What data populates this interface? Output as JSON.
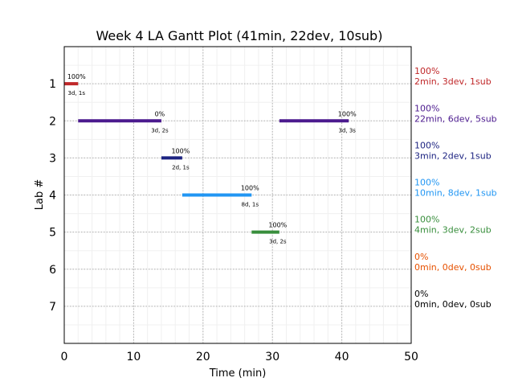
{
  "chart_data": {
    "type": "gantt",
    "title": "Week 4 LA Gantt Plot (41min, 22dev, 10sub)",
    "xlabel": "Time (min)",
    "ylabel": "Lab #",
    "xlim": [
      0,
      50
    ],
    "ylim": [
      8,
      0
    ],
    "xticks": [
      "0",
      "10",
      "20",
      "30",
      "40",
      "50"
    ],
    "xtick_values": [
      0,
      10,
      20,
      30,
      40,
      50
    ],
    "yticks": [
      "1",
      "2",
      "3",
      "4",
      "5",
      "6",
      "7"
    ],
    "ytick_values": [
      1,
      2,
      3,
      4,
      5,
      6,
      7
    ],
    "grid": true,
    "bars": [
      {
        "lab": 1,
        "start": 0,
        "end": 2,
        "pct": "100%",
        "info": "3d, 1s",
        "color": "#c0282a"
      },
      {
        "lab": 2,
        "start": 2,
        "end": 14,
        "pct": "0%",
        "info": "3d, 2s",
        "color": "#4b1a8e"
      },
      {
        "lab": 2,
        "start": 31,
        "end": 41,
        "pct": "100%",
        "info": "3d, 3s",
        "color": "#4b1a8e"
      },
      {
        "lab": 3,
        "start": 14,
        "end": 17,
        "pct": "100%",
        "info": "2d, 1s",
        "color": "#1c2381"
      },
      {
        "lab": 4,
        "start": 17,
        "end": 27,
        "pct": "100%",
        "info": "8d, 1s",
        "color": "#2196f3"
      },
      {
        "lab": 5,
        "start": 27,
        "end": 31,
        "pct": "100%",
        "info": "3d, 2s",
        "color": "#388e3c"
      }
    ],
    "summaries": [
      {
        "lab": 1,
        "pct": "100%",
        "text": "2min, 3dev, 1sub",
        "color": "#c0282a"
      },
      {
        "lab": 2,
        "pct": "100%",
        "text": "22min, 6dev, 5sub",
        "color": "#4b1a8e"
      },
      {
        "lab": 3,
        "pct": "100%",
        "text": "3min, 2dev, 1sub",
        "color": "#1c2381"
      },
      {
        "lab": 4,
        "pct": "100%",
        "text": "10min, 8dev, 1sub",
        "color": "#2196f3"
      },
      {
        "lab": 5,
        "pct": "100%",
        "text": "4min, 3dev, 2sub",
        "color": "#388e3c"
      },
      {
        "lab": 6,
        "pct": "0%",
        "text": "0min, 0dev, 0sub",
        "color": "#e65100"
      },
      {
        "lab": 7,
        "pct": "0%",
        "text": "0min, 0dev, 0sub",
        "color": "#000000"
      }
    ]
  }
}
